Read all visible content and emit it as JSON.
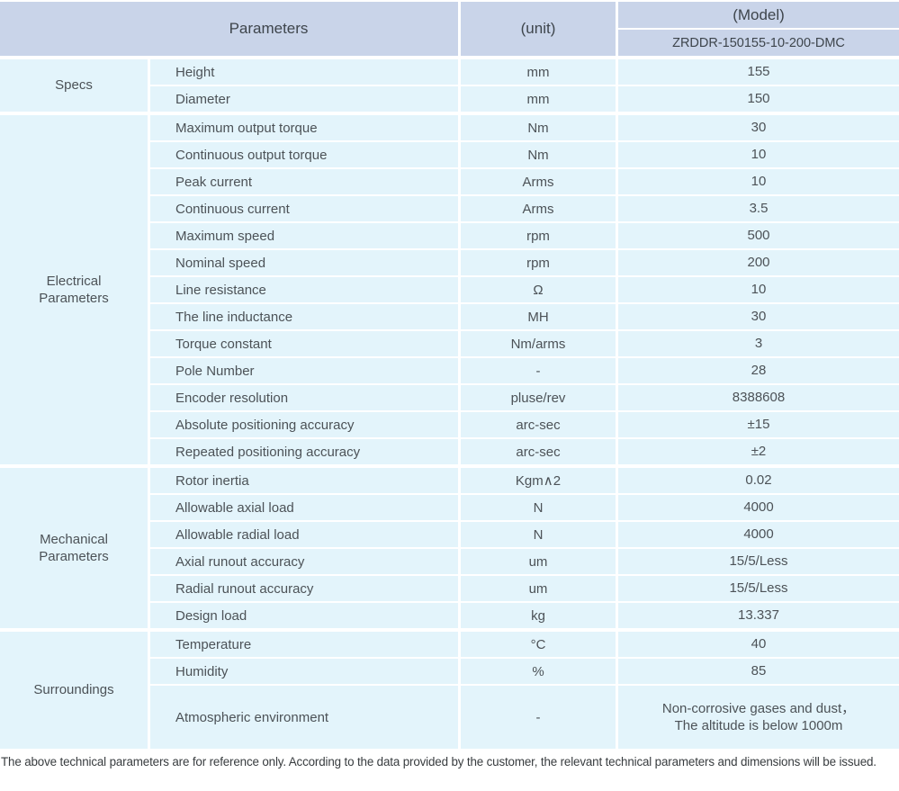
{
  "table": {
    "header": {
      "parameters": "Parameters",
      "unit": "(unit)",
      "model": "(Model)",
      "model_code": "ZRDDR-150155-10-200-DMC"
    },
    "sections": [
      {
        "category": [
          "Specs"
        ],
        "rows": [
          {
            "name": "Height",
            "unit": "mm",
            "value": "155"
          },
          {
            "name": "Diameter",
            "unit": "mm",
            "value": "150"
          }
        ]
      },
      {
        "category": [
          "Electrical",
          "Parameters"
        ],
        "rows": [
          {
            "name": "Maximum output torque",
            "unit": "Nm",
            "value": "30"
          },
          {
            "name": "Continuous output torque",
            "unit": "Nm",
            "value": "10"
          },
          {
            "name": "Peak current",
            "unit": "Arms",
            "value": "10"
          },
          {
            "name": "Continuous current",
            "unit": "Arms",
            "value": "3.5"
          },
          {
            "name": "Maximum speed",
            "unit": "rpm",
            "value": "500"
          },
          {
            "name": "Nominal speed",
            "unit": "rpm",
            "value": "200"
          },
          {
            "name": "Line resistance",
            "unit": "Ω",
            "value": "10"
          },
          {
            "name": "The line inductance",
            "unit": "MH",
            "value": "30"
          },
          {
            "name": "Torque constant",
            "unit": "Nm/arms",
            "value": "3"
          },
          {
            "name": "Pole Number",
            "unit": "-",
            "value": "28"
          },
          {
            "name": "Encoder resolution",
            "unit": "pluse/rev",
            "value": "8388608"
          },
          {
            "name": "Absolute positioning accuracy",
            "unit": "arc-sec",
            "value": "±15"
          },
          {
            "name": "Repeated positioning accuracy",
            "unit": "arc-sec",
            "value": "±2"
          }
        ]
      },
      {
        "category": [
          "Mechanical",
          "Parameters"
        ],
        "rows": [
          {
            "name": "Rotor inertia",
            "unit": "Kgm∧2",
            "value": "0.02"
          },
          {
            "name": "Allowable axial load",
            "unit": "N",
            "value": "4000"
          },
          {
            "name": "Allowable radial load",
            "unit": "N",
            "value": "4000"
          },
          {
            "name": "Axial runout accuracy",
            "unit": "um",
            "value": "15/5/Less"
          },
          {
            "name": "Radial runout accuracy",
            "unit": "um",
            "value": "15/5/Less"
          },
          {
            "name": "Design load",
            "unit": "kg",
            "value": "13.337"
          }
        ]
      },
      {
        "category": [
          "Surroundings"
        ],
        "rows": [
          {
            "name": "Temperature",
            "unit": "°C",
            "value": "40"
          },
          {
            "name": "Humidity",
            "unit": "%",
            "value": "85"
          },
          {
            "name": "Atmospheric environment",
            "unit": "-",
            "value": [
              "Non-corrosive gases and dust，",
              "The altitude is below 1000m"
            ],
            "tall": true
          }
        ]
      }
    ]
  },
  "footer": {
    "note": "The above technical parameters are for reference only. According to the data provided by the customer, the relevant technical parameters and dimensions will be issued."
  },
  "colors": {
    "header_bg": "#c9d4e9",
    "cell_bg": "#e3f4fb",
    "text": "#4c5257"
  }
}
